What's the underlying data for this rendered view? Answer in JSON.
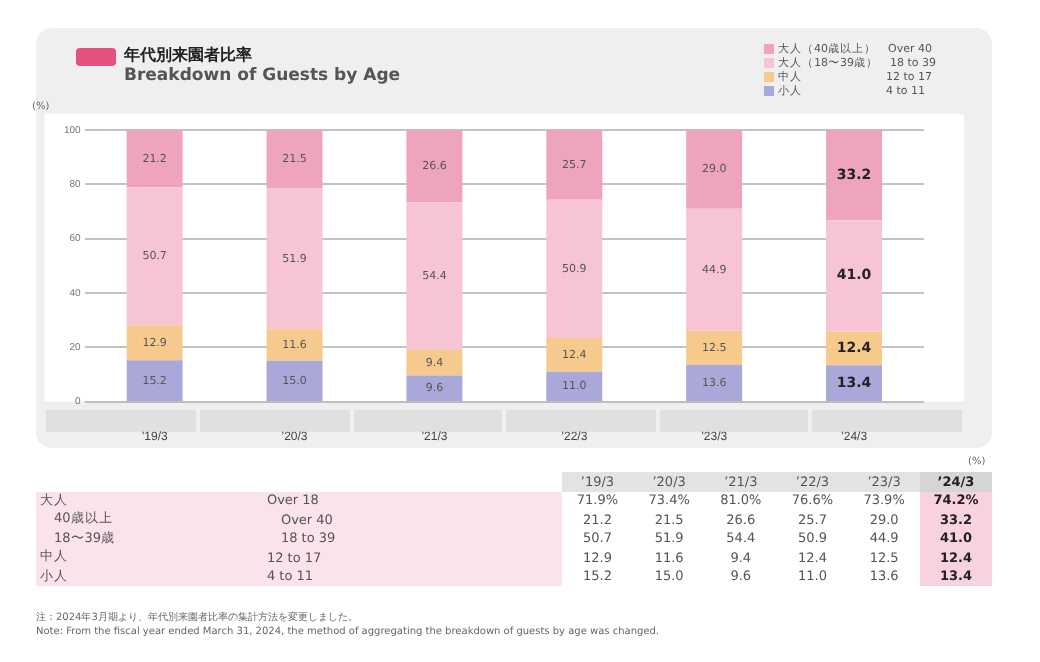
{
  "chart_data": {
    "type": "bar",
    "stacked": true,
    "title": "年代別来園者比率",
    "subtitle": "Breakdown of Guests by Age",
    "ylabel": "(%)",
    "categories": [
      "’19/3",
      "’20/3",
      "’21/3",
      "’22/3",
      "’23/3",
      "’24/3"
    ],
    "series": [
      {
        "name": "小人　　　　　　　4 to 11",
        "color": "#aaa8d8",
        "values": [
          15.2,
          15.0,
          9.6,
          11.0,
          13.6,
          13.4
        ],
        "value_labels": [
          "15.2",
          "15.0",
          "9.6",
          "11.0",
          "13.6",
          "13.4"
        ]
      },
      {
        "name": "中人　　　　　　　12 to 17",
        "color": "#f6c98c",
        "values": [
          12.9,
          11.6,
          9.4,
          12.4,
          12.5,
          12.4
        ],
        "value_labels": [
          "12.9",
          "11.6",
          "9.4",
          "12.4",
          "12.5",
          "12.4"
        ]
      },
      {
        "name": "大人（18〜39歳）　18 to 39",
        "color": "#f6c4d2",
        "values": [
          50.7,
          51.9,
          54.4,
          50.9,
          44.9,
          41.0
        ],
        "value_labels": [
          "50.7",
          "51.9",
          "54.4",
          "50.9",
          "44.9",
          "41.0"
        ]
      },
      {
        "name": "大人（40歳以上）　Over 40",
        "color": "#eea4ba",
        "values": [
          21.2,
          21.5,
          26.6,
          25.7,
          29.0,
          33.2
        ],
        "value_labels": [
          "21.2",
          "21.5",
          "26.6",
          "25.7",
          "29.0",
          "33.2"
        ]
      }
    ],
    "ylim": [
      0,
      100
    ],
    "yticks": [
      0,
      20,
      40,
      60,
      80,
      100
    ],
    "grid": "y",
    "legend": "top right",
    "annotations": [
      "(%)",
      "大人",
      "Over 18",
      "71.9%",
      "73.4%",
      "81.0%",
      "76.6%",
      "73.9%",
      "74.2%",
      "40歳以上",
      "Over 40",
      "21.2",
      "21.5",
      "26.6",
      "25.7",
      "29.0",
      "33.2",
      "18〜39歳",
      "18 to 39",
      "50.7",
      "51.9",
      "54.4",
      "50.9",
      "44.9",
      "41.0",
      "中人",
      "12 to 17",
      "12.9",
      "11.6",
      "9.4",
      "12.4",
      "12.5",
      "12.4",
      "小人",
      "4 to 11",
      "15.2",
      "15.0",
      "9.6",
      "11.0",
      "13.6",
      "13.4",
      "注：2024年3月期より、年代別来園者比率の集計方法を変更しました。",
      "Note: From the fiscal year ended March 31, 2024, the method of aggregating the breakdown of guests by age was changed."
    ]
  }
}
